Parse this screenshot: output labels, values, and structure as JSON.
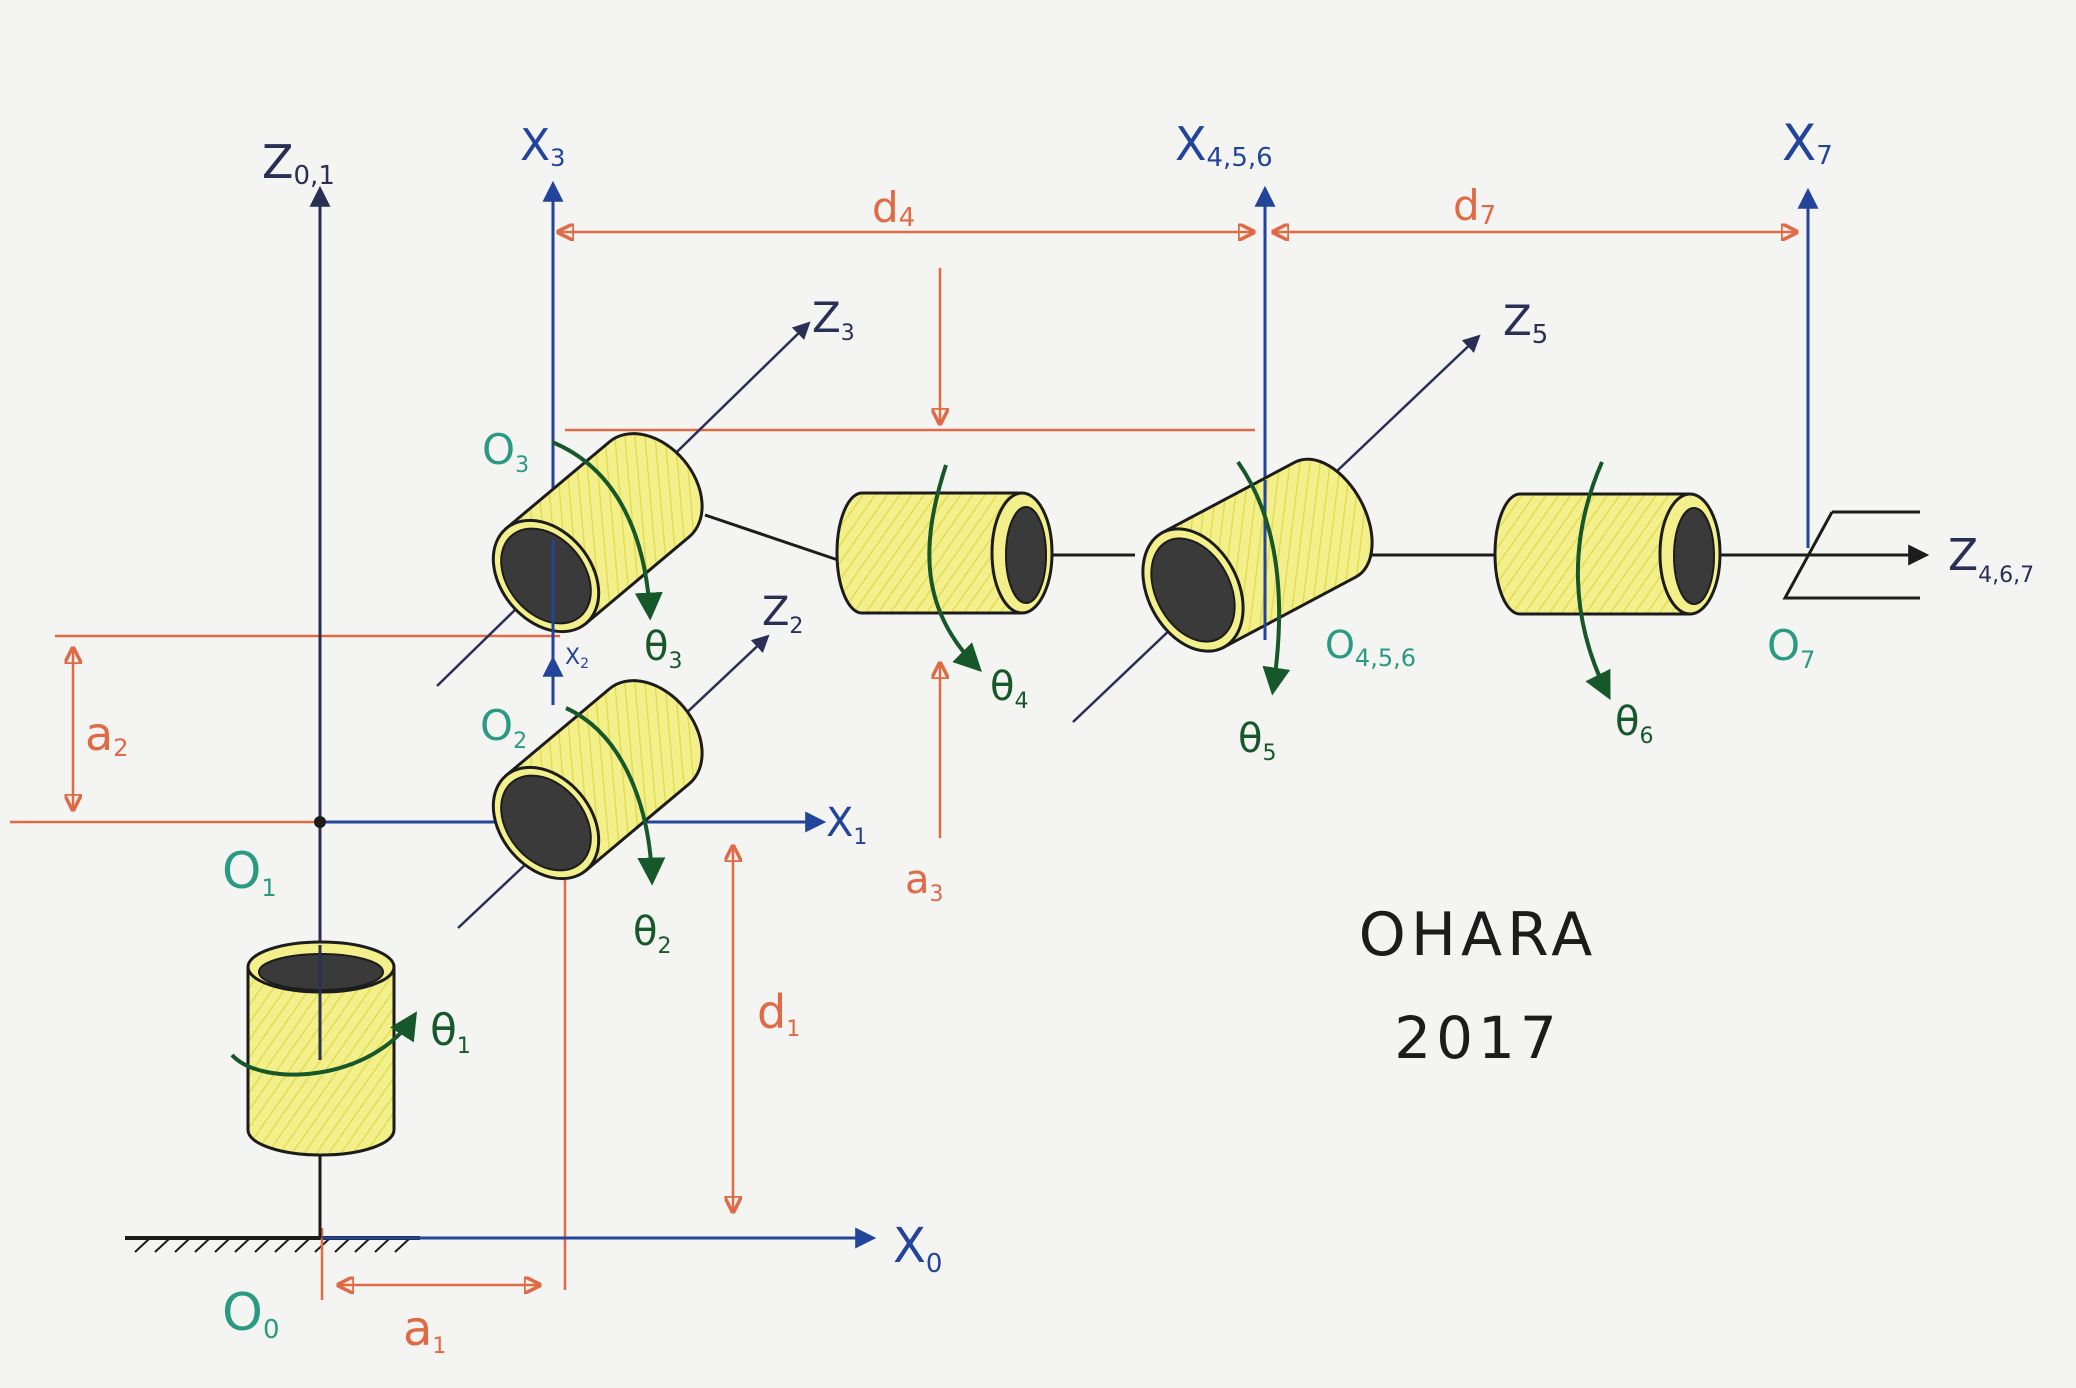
{
  "colors": {
    "paper": "#f4f4f2",
    "axis_blue": "#22449a",
    "dim_orange": "#e06a45",
    "frame_green": "#2a9b82",
    "rot_green": "#17582a",
    "link_black": "#1c1c1c",
    "joint_yellow": "#f3f08c",
    "joint_bore": "#3a3a3a"
  },
  "axes": {
    "z01": {
      "main": "Z",
      "sub": "0,1"
    },
    "x0": {
      "main": "X",
      "sub": "0"
    },
    "x1": {
      "main": "X",
      "sub": "1"
    },
    "x2": {
      "main": "X",
      "sub": "2"
    },
    "x3": {
      "main": "X",
      "sub": "3"
    },
    "x456": {
      "main": "X",
      "sub": "4,5,6"
    },
    "x7": {
      "main": "X",
      "sub": "7"
    },
    "z2": {
      "main": "Z",
      "sub": "2"
    },
    "z3": {
      "main": "Z",
      "sub": "3"
    },
    "z5": {
      "main": "Z",
      "sub": "5"
    },
    "z467": {
      "main": "Z",
      "sub": "4,6,7"
    }
  },
  "origins": {
    "o0": {
      "main": "O",
      "sub": "0"
    },
    "o1": {
      "main": "O",
      "sub": "1"
    },
    "o2": {
      "main": "O",
      "sub": "2"
    },
    "o3": {
      "main": "O",
      "sub": "3"
    },
    "o456": {
      "main": "O",
      "sub": "4,5,6"
    },
    "o7": {
      "main": "O",
      "sub": "7"
    }
  },
  "dimensions": {
    "a1": {
      "main": "a",
      "sub": "1"
    },
    "a2": {
      "main": "a",
      "sub": "2"
    },
    "a3": {
      "main": "a",
      "sub": "3"
    },
    "d1": {
      "main": "d",
      "sub": "1"
    },
    "d4": {
      "main": "d",
      "sub": "4"
    },
    "d7": {
      "main": "d",
      "sub": "7"
    }
  },
  "joints": {
    "t1": {
      "main": "θ",
      "sub": "1"
    },
    "t2": {
      "main": "θ",
      "sub": "2"
    },
    "t3": {
      "main": "θ",
      "sub": "3"
    },
    "t4": {
      "main": "θ",
      "sub": "4"
    },
    "t5": {
      "main": "θ",
      "sub": "5"
    },
    "t6": {
      "main": "θ",
      "sub": "6"
    }
  },
  "signature": {
    "name": "OHARA",
    "year": "2017"
  }
}
